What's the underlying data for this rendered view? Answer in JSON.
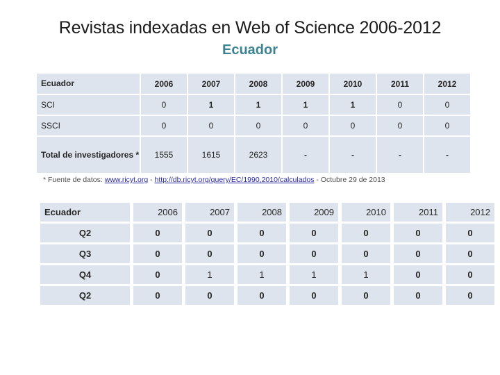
{
  "slide": {
    "title": "Revistas indexadas en Web of Science 2006-2012",
    "subtitle": "Ecuador"
  },
  "colors": {
    "accent_teal": "#3c8493",
    "table_cell_bg": "#dde4ed",
    "link_blue": "#2929a3"
  },
  "table1": {
    "header": [
      {
        "t": "Ecuador",
        "b": true
      },
      {
        "t": "2006",
        "b": true
      },
      {
        "t": "2007",
        "b": true
      },
      {
        "t": "2008",
        "b": true
      },
      {
        "t": "2009",
        "b": true
      },
      {
        "t": "2010",
        "b": true
      },
      {
        "t": "2011",
        "b": true
      },
      {
        "t": "2012",
        "b": true
      }
    ],
    "rows": [
      {
        "cells": [
          {
            "t": "SCI",
            "b": false
          },
          {
            "t": "0",
            "b": false
          },
          {
            "t": "1",
            "b": true
          },
          {
            "t": "1",
            "b": true
          },
          {
            "t": "1",
            "b": true
          },
          {
            "t": "1",
            "b": true
          },
          {
            "t": "0",
            "b": false
          },
          {
            "t": "0",
            "b": false
          }
        ]
      },
      {
        "cells": [
          {
            "t": "SSCI",
            "b": false
          },
          {
            "t": "0",
            "b": false
          },
          {
            "t": "0",
            "b": false
          },
          {
            "t": "0",
            "b": false
          },
          {
            "t": "0",
            "b": false
          },
          {
            "t": "0",
            "b": false
          },
          {
            "t": "0",
            "b": false
          },
          {
            "t": "0",
            "b": false
          }
        ]
      },
      {
        "cells": [
          {
            "t": "Total de investigadores *",
            "b": true
          },
          {
            "t": "1555",
            "b": false
          },
          {
            "t": "1615",
            "b": false
          },
          {
            "t": "2623",
            "b": false
          },
          {
            "t": "-",
            "b": true
          },
          {
            "t": "-",
            "b": true
          },
          {
            "t": "-",
            "b": true
          },
          {
            "t": "-",
            "b": true
          }
        ]
      }
    ]
  },
  "footnote": {
    "prefix": "* Fuente de datos: ",
    "link1": "www.ricyt.org",
    "separator1": " - ",
    "link2": "http://db.ricyt.org/query/EC/1990,2010/calculados",
    "suffix": " - Octubre 29 de 2013"
  },
  "table2": {
    "header": [
      {
        "t": "Ecuador",
        "b": true
      },
      {
        "t": "2006",
        "b": false
      },
      {
        "t": "2007",
        "b": false
      },
      {
        "t": "2008",
        "b": false
      },
      {
        "t": "2009",
        "b": false
      },
      {
        "t": "2010",
        "b": false
      },
      {
        "t": "2011",
        "b": false
      },
      {
        "t": "2012",
        "b": false
      }
    ],
    "rows": [
      {
        "cells": [
          {
            "t": "Q2",
            "b": true
          },
          {
            "t": "0",
            "b": true
          },
          {
            "t": "0",
            "b": true
          },
          {
            "t": "0",
            "b": true
          },
          {
            "t": "0",
            "b": true
          },
          {
            "t": "0",
            "b": true
          },
          {
            "t": "0",
            "b": true
          },
          {
            "t": "0",
            "b": true
          }
        ]
      },
      {
        "cells": [
          {
            "t": "Q3",
            "b": true
          },
          {
            "t": "0",
            "b": true
          },
          {
            "t": "0",
            "b": true
          },
          {
            "t": "0",
            "b": true
          },
          {
            "t": "0",
            "b": true
          },
          {
            "t": "0",
            "b": true
          },
          {
            "t": "0",
            "b": true
          },
          {
            "t": "0",
            "b": true
          }
        ]
      },
      {
        "cells": [
          {
            "t": "Q4",
            "b": true
          },
          {
            "t": "0",
            "b": true
          },
          {
            "t": "1",
            "b": false
          },
          {
            "t": "1",
            "b": false
          },
          {
            "t": "1",
            "b": false
          },
          {
            "t": "1",
            "b": false
          },
          {
            "t": "0",
            "b": true
          },
          {
            "t": "0",
            "b": true
          }
        ]
      },
      {
        "cells": [
          {
            "t": "Q2",
            "b": true
          },
          {
            "t": "0",
            "b": true
          },
          {
            "t": "0",
            "b": true
          },
          {
            "t": "0",
            "b": true
          },
          {
            "t": "0",
            "b": true
          },
          {
            "t": "0",
            "b": true
          },
          {
            "t": "0",
            "b": true
          },
          {
            "t": "0",
            "b": true
          }
        ]
      }
    ]
  }
}
